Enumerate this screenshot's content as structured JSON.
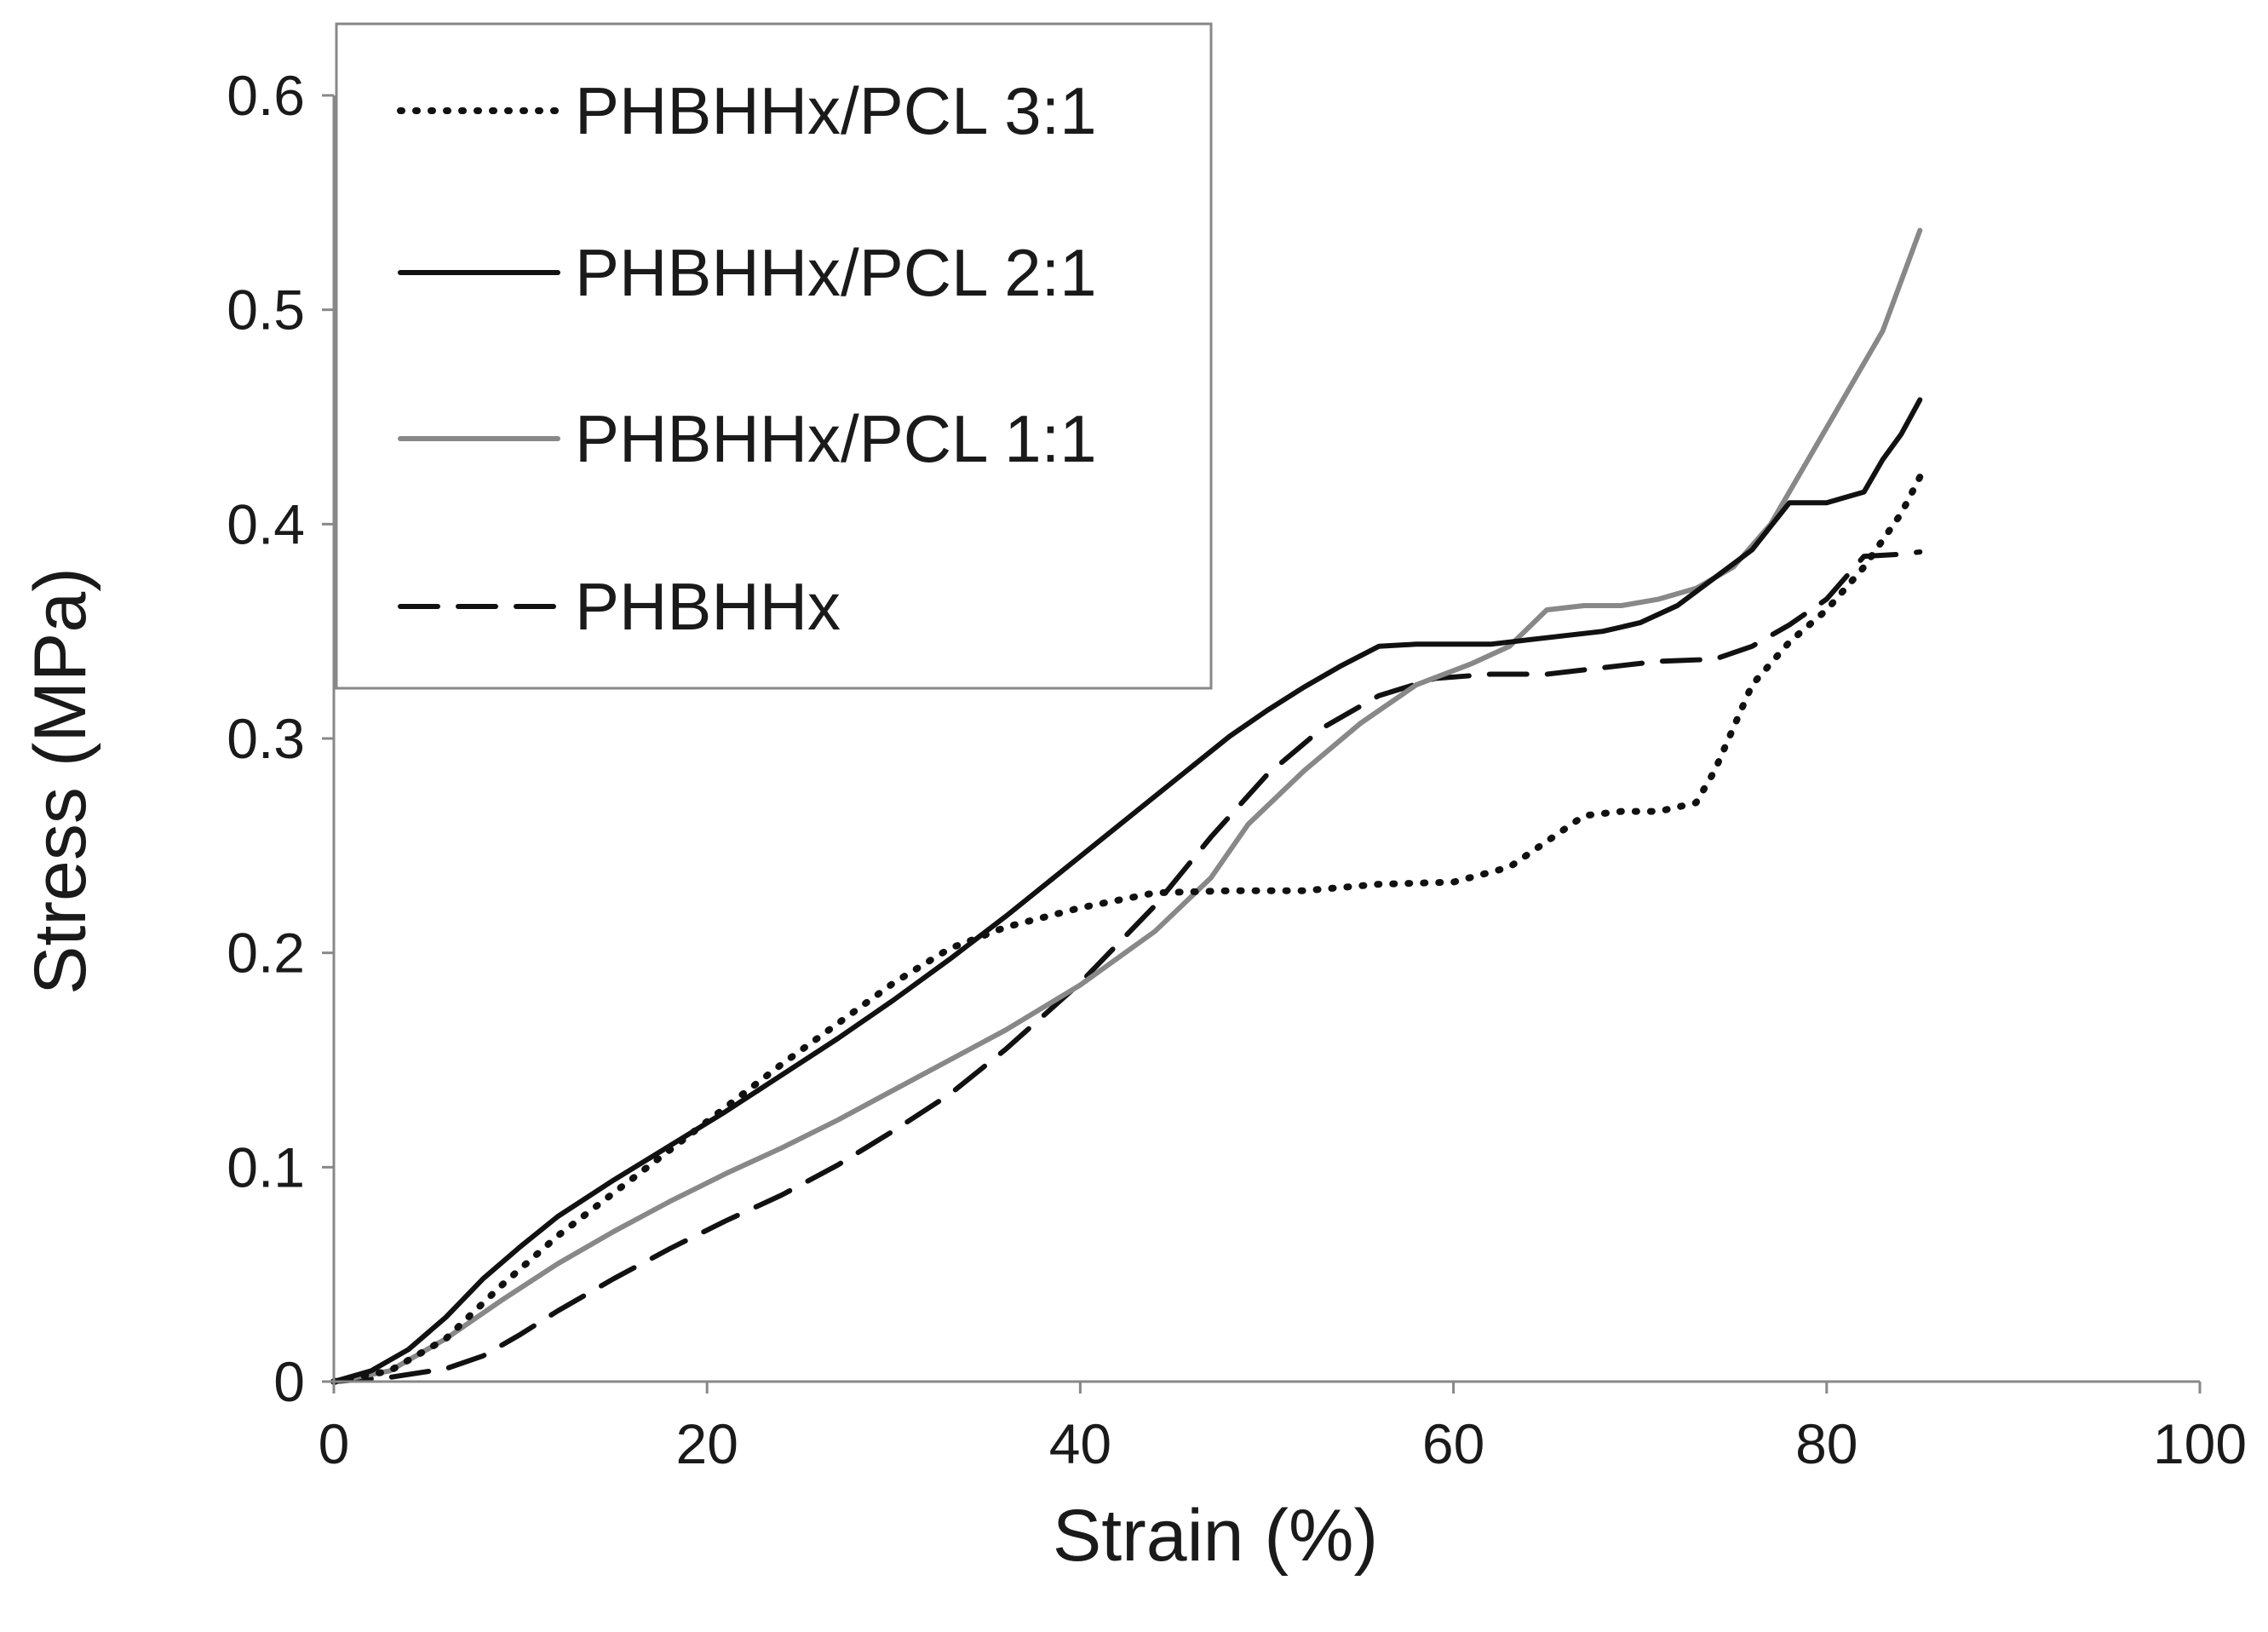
{
  "chart_data": {
    "type": "line",
    "title": "",
    "xlabel": "Strain (%)",
    "ylabel": "Stress (MPa)",
    "xlim": [
      0,
      100
    ],
    "ylim": [
      0,
      0.6
    ],
    "xticks": [
      0,
      20,
      40,
      60,
      80,
      100
    ],
    "yticks": [
      0,
      0.1,
      0.2,
      0.3,
      0.4,
      0.5,
      0.6
    ],
    "xtick_labels": [
      "0",
      "20",
      "40",
      "60",
      "80",
      "100"
    ],
    "ytick_labels": [
      "0",
      "0.1",
      "0.2",
      "0.3",
      "0.4",
      "0.5",
      "0.6"
    ],
    "legend_position": "top-left",
    "grid": false,
    "series": [
      {
        "name": "PHBHHx/PCL 3:1",
        "style": "dotted",
        "color": "#111111",
        "points": [
          [
            0,
            0
          ],
          [
            3,
            0.005
          ],
          [
            6,
            0.02
          ],
          [
            9,
            0.045
          ],
          [
            12,
            0.068
          ],
          [
            15,
            0.088
          ],
          [
            18,
            0.108
          ],
          [
            21,
            0.128
          ],
          [
            24,
            0.148
          ],
          [
            27,
            0.167
          ],
          [
            30,
            0.186
          ],
          [
            33,
            0.202
          ],
          [
            36,
            0.212
          ],
          [
            40,
            0.221
          ],
          [
            44,
            0.228
          ],
          [
            48,
            0.229
          ],
          [
            52,
            0.229
          ],
          [
            56,
            0.232
          ],
          [
            60,
            0.233
          ],
          [
            63,
            0.24
          ],
          [
            65,
            0.252
          ],
          [
            67,
            0.264
          ],
          [
            69,
            0.266
          ],
          [
            71,
            0.266
          ],
          [
            73,
            0.27
          ],
          [
            74,
            0.285
          ],
          [
            75,
            0.305
          ],
          [
            76,
            0.325
          ],
          [
            78,
            0.345
          ],
          [
            80,
            0.36
          ],
          [
            82,
            0.38
          ],
          [
            84,
            0.405
          ],
          [
            85,
            0.422
          ]
        ]
      },
      {
        "name": "PHBHHx/PCL 2:1",
        "style": "solid",
        "color": "#111111",
        "points": [
          [
            0,
            0
          ],
          [
            2,
            0.005
          ],
          [
            4,
            0.015
          ],
          [
            6,
            0.03
          ],
          [
            8,
            0.048
          ],
          [
            10,
            0.063
          ],
          [
            12,
            0.077
          ],
          [
            15,
            0.094
          ],
          [
            18,
            0.11
          ],
          [
            21,
            0.126
          ],
          [
            24,
            0.143
          ],
          [
            27,
            0.16
          ],
          [
            30,
            0.178
          ],
          [
            33,
            0.197
          ],
          [
            36,
            0.217
          ],
          [
            40,
            0.245
          ],
          [
            44,
            0.273
          ],
          [
            48,
            0.301
          ],
          [
            50,
            0.313
          ],
          [
            52,
            0.324
          ],
          [
            54,
            0.334
          ],
          [
            56,
            0.343
          ],
          [
            58,
            0.344
          ],
          [
            60,
            0.344
          ],
          [
            62,
            0.344
          ],
          [
            64,
            0.346
          ],
          [
            66,
            0.348
          ],
          [
            68,
            0.35
          ],
          [
            70,
            0.354
          ],
          [
            72,
            0.362
          ],
          [
            74,
            0.375
          ],
          [
            76,
            0.388
          ],
          [
            78,
            0.41
          ],
          [
            80,
            0.41
          ],
          [
            82,
            0.415
          ],
          [
            83,
            0.43
          ],
          [
            84,
            0.442
          ],
          [
            85,
            0.458
          ]
        ]
      },
      {
        "name": "PHBHHx/PCL 1:1",
        "style": "solid",
        "color": "#888888",
        "points": [
          [
            0,
            0
          ],
          [
            3,
            0.005
          ],
          [
            6,
            0.02
          ],
          [
            9,
            0.038
          ],
          [
            12,
            0.055
          ],
          [
            15,
            0.07
          ],
          [
            18,
            0.084
          ],
          [
            21,
            0.097
          ],
          [
            24,
            0.109
          ],
          [
            27,
            0.122
          ],
          [
            30,
            0.136
          ],
          [
            33,
            0.15
          ],
          [
            36,
            0.164
          ],
          [
            40,
            0.185
          ],
          [
            44,
            0.21
          ],
          [
            47,
            0.235
          ],
          [
            49,
            0.26
          ],
          [
            52,
            0.285
          ],
          [
            55,
            0.307
          ],
          [
            58,
            0.325
          ],
          [
            61,
            0.335
          ],
          [
            63,
            0.343
          ],
          [
            65,
            0.36
          ],
          [
            67,
            0.362
          ],
          [
            69,
            0.362
          ],
          [
            71,
            0.365
          ],
          [
            73,
            0.37
          ],
          [
            75,
            0.38
          ],
          [
            77,
            0.4
          ],
          [
            79,
            0.43
          ],
          [
            81,
            0.46
          ],
          [
            83,
            0.49
          ],
          [
            85,
            0.537
          ]
        ]
      },
      {
        "name": "PHBHHx",
        "style": "dashed",
        "color": "#111111",
        "points": [
          [
            0,
            0
          ],
          [
            3,
            0.002
          ],
          [
            6,
            0.006
          ],
          [
            8,
            0.012
          ],
          [
            10,
            0.022
          ],
          [
            12,
            0.033
          ],
          [
            15,
            0.048
          ],
          [
            18,
            0.062
          ],
          [
            21,
            0.075
          ],
          [
            24,
            0.087
          ],
          [
            27,
            0.101
          ],
          [
            30,
            0.117
          ],
          [
            33,
            0.134
          ],
          [
            36,
            0.155
          ],
          [
            40,
            0.186
          ],
          [
            44,
            0.222
          ],
          [
            47,
            0.254
          ],
          [
            50,
            0.283
          ],
          [
            53,
            0.305
          ],
          [
            56,
            0.32
          ],
          [
            59,
            0.328
          ],
          [
            62,
            0.33
          ],
          [
            65,
            0.33
          ],
          [
            68,
            0.333
          ],
          [
            71,
            0.336
          ],
          [
            74,
            0.337
          ],
          [
            76,
            0.343
          ],
          [
            78,
            0.353
          ],
          [
            80,
            0.365
          ],
          [
            82,
            0.385
          ],
          [
            84,
            0.386
          ],
          [
            85,
            0.387
          ]
        ]
      }
    ]
  }
}
